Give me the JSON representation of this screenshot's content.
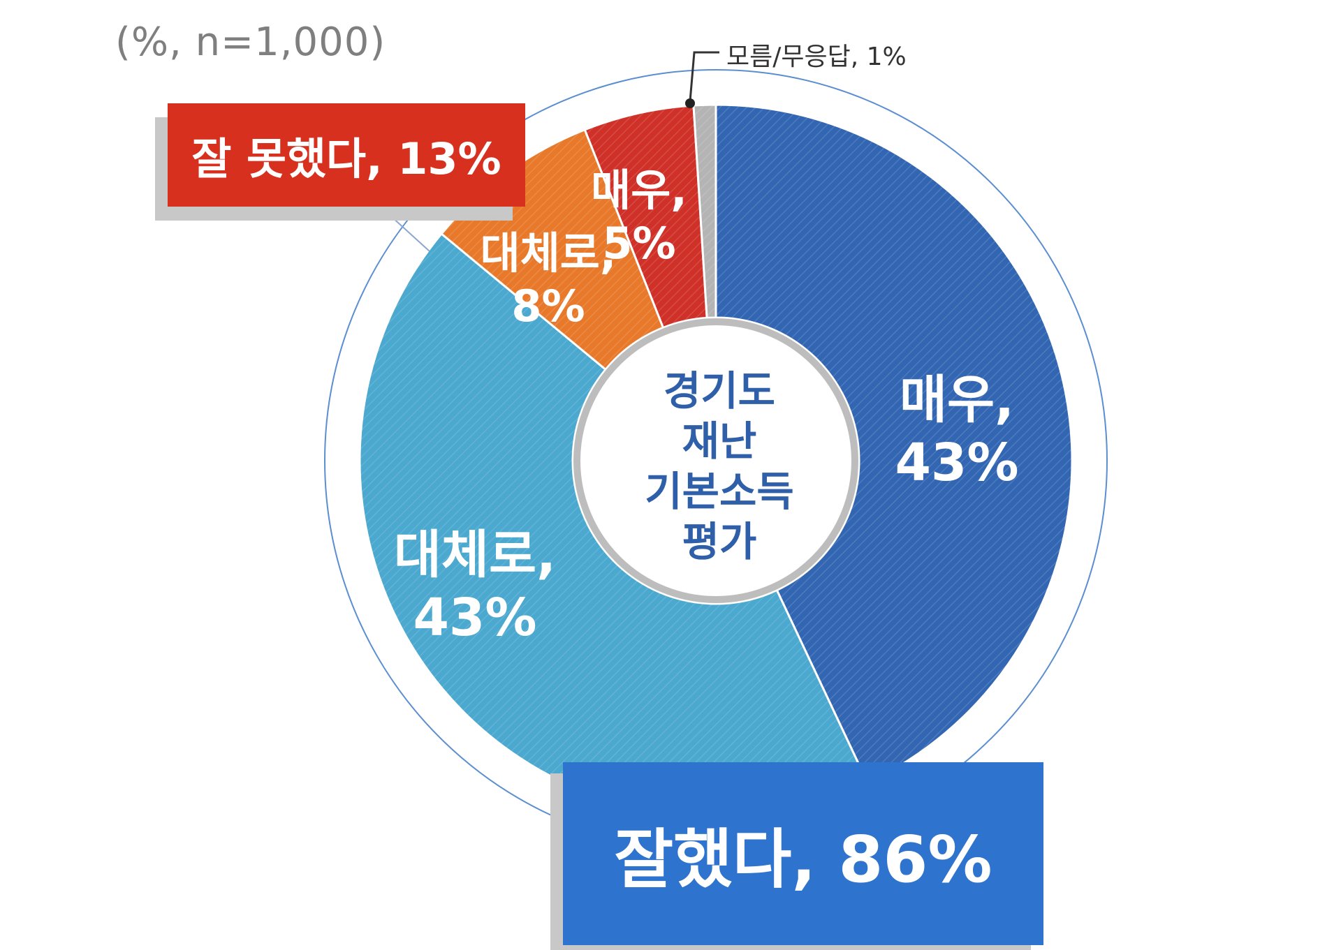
{
  "sample_note": "(%, n=1,000)",
  "center_title": [
    "경기도",
    "재난",
    "기본소득",
    "평가"
  ],
  "summary": {
    "good_box": "잘했다, 86%",
    "bad_box": "잘 못했다, 13%"
  },
  "segment_labels": {
    "very_good": [
      "매우,",
      "43%"
    ],
    "somewhat_good": [
      "대체로,",
      "43%"
    ],
    "somewhat_bad": [
      "대체로,",
      "8%"
    ],
    "very_bad": [
      "매우,",
      "5%"
    ],
    "dont_know": "모름/무응답, 1%"
  },
  "colors": {
    "very_good": "#3366b2",
    "somewhat_good": "#4ba8cf",
    "somewhat_bad": "#e8792a",
    "very_bad": "#cf3129",
    "dont_know": "#b4b4b4",
    "good_box": "#2e73cd",
    "bad_box": "#d8301f",
    "center_text": "#2e5fa8",
    "outer_ring": "#5b8ed0"
  },
  "chart_data": {
    "type": "pie",
    "variant": "donut",
    "start": "top",
    "direction": "clockwise",
    "slices": [
      {
        "key": "very_good",
        "value": 43
      },
      {
        "key": "somewhat_good",
        "value": 43
      },
      {
        "key": "somewhat_bad",
        "value": 8
      },
      {
        "key": "very_bad",
        "value": 5
      },
      {
        "key": "dont_know",
        "value": 1
      }
    ],
    "groups": [
      {
        "key": "good",
        "value": 86
      },
      {
        "key": "bad",
        "value": 13
      }
    ]
  }
}
